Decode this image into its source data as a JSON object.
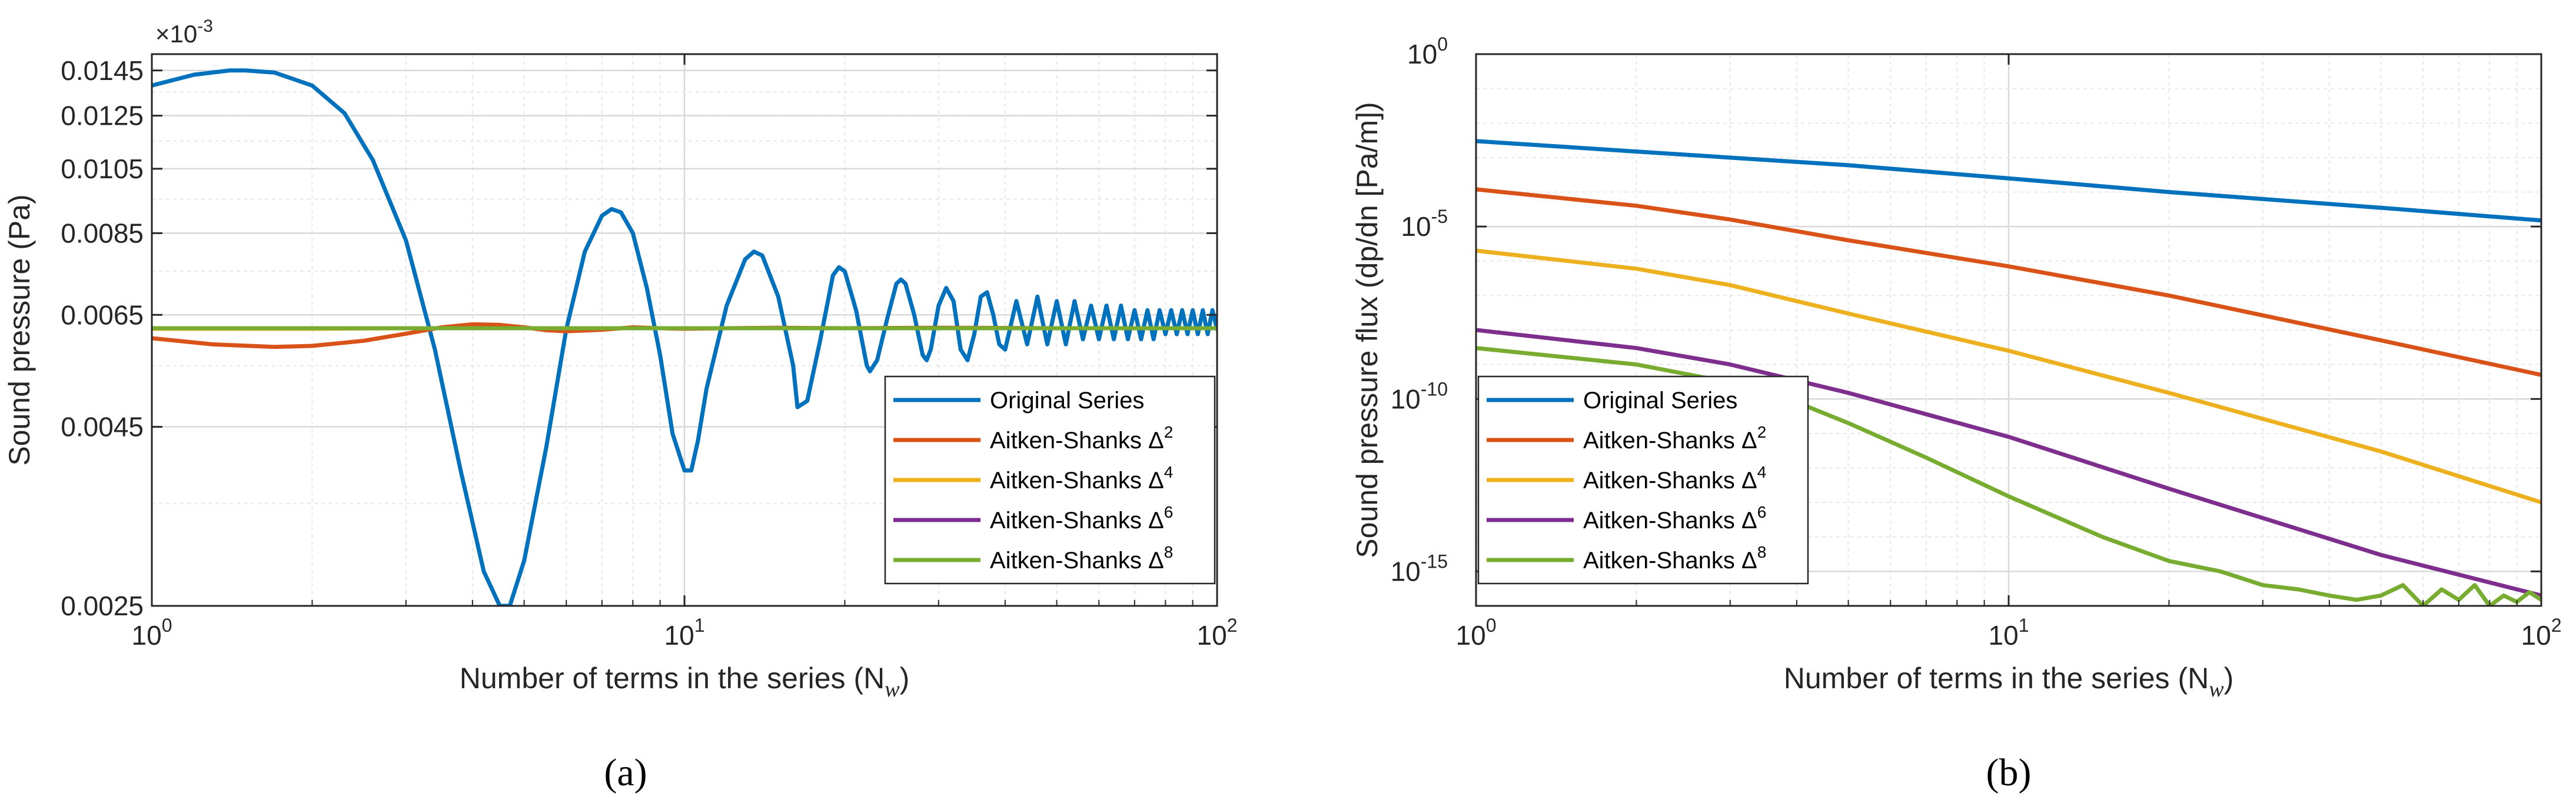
{
  "chart_data": [
    {
      "type": "line",
      "panel_label": "(a)",
      "xlabel": "Number of terms in the series (N",
      "xlabel_sub": "w",
      "xlabel_close": ")",
      "ylabel": "Sound pressure (Pa)",
      "xscale": "log",
      "yscale": "log",
      "xlim": [
        1,
        100
      ],
      "ylim": [
        0.0025,
        0.0153
      ],
      "x_ticks": [
        {
          "value": 1,
          "base": "10",
          "exp": "0"
        },
        {
          "value": 10,
          "base": "10",
          "exp": "1"
        },
        {
          "value": 100,
          "base": "10",
          "exp": "2"
        }
      ],
      "y_ticks": [
        {
          "value": 0.0025,
          "label": "0.0025"
        },
        {
          "value": 0.0045,
          "label": "0.0045"
        },
        {
          "value": 0.0065,
          "label": "0.0065"
        },
        {
          "value": 0.0085,
          "label": "0.0085"
        },
        {
          "value": 0.0105,
          "label": "0.0105"
        },
        {
          "value": 0.0125,
          "label": "0.0125"
        },
        {
          "value": 0.0145,
          "label": "0.0145"
        }
      ],
      "multiplier": {
        "base": "×10",
        "exp": "-3"
      },
      "grid": true,
      "legend_position": "lower-right",
      "series": [
        {
          "name": "Original Series",
          "color": "#0072BD",
          "x": [
            1,
            1.2,
            1.4,
            1.5,
            1.7,
            2,
            2.3,
            2.6,
            3,
            3.4,
            3.8,
            4.2,
            4.5,
            4.7,
            5,
            5.5,
            6,
            6.5,
            7,
            7.3,
            7.6,
            8,
            8.5,
            9,
            9.5,
            10,
            10.3,
            10.6,
            11,
            12,
            13,
            13.5,
            14,
            15,
            16,
            16.3,
            17,
            18,
            19,
            19.5,
            20,
            21,
            22,
            22.3,
            23,
            24,
            25,
            25.5,
            26,
            27,
            28,
            28.5,
            29,
            30,
            31,
            32,
            33,
            34,
            35,
            36,
            37,
            38,
            39,
            40,
            42,
            44,
            46,
            48,
            50,
            52,
            54,
            56,
            58,
            60,
            62,
            64,
            66,
            68,
            70,
            72,
            74,
            76,
            78,
            80,
            82,
            84,
            86,
            88,
            90,
            92,
            94,
            96,
            98,
            100
          ],
          "y": [
            0.0138,
            0.0143,
            0.0145,
            0.0145,
            0.0144,
            0.0138,
            0.0126,
            0.0108,
            0.0083,
            0.0058,
            0.0039,
            0.0028,
            0.0025,
            0.0025,
            0.0029,
            0.0042,
            0.0062,
            0.008,
            0.009,
            0.0092,
            0.0091,
            0.0085,
            0.0071,
            0.0057,
            0.0044,
            0.0039,
            0.0039,
            0.0043,
            0.0051,
            0.0067,
            0.0078,
            0.008,
            0.0079,
            0.0069,
            0.0055,
            0.0048,
            0.0049,
            0.006,
            0.0074,
            0.0076,
            0.0075,
            0.0066,
            0.0055,
            0.0054,
            0.0056,
            0.0064,
            0.0072,
            0.0073,
            0.0072,
            0.0065,
            0.0057,
            0.0056,
            0.0058,
            0.0067,
            0.0071,
            0.0068,
            0.0058,
            0.0056,
            0.0061,
            0.0069,
            0.007,
            0.0065,
            0.0059,
            0.0058,
            0.0068,
            0.0059,
            0.0069,
            0.0059,
            0.0068,
            0.0059,
            0.0068,
            0.006,
            0.0067,
            0.006,
            0.0067,
            0.006,
            0.0067,
            0.006,
            0.0066,
            0.006,
            0.0066,
            0.006,
            0.0066,
            0.0061,
            0.0066,
            0.0061,
            0.0066,
            0.0061,
            0.0066,
            0.0061,
            0.0066,
            0.0061,
            0.0066,
            0.0062
          ]
        },
        {
          "name": "Aitken-Shanks Δ",
          "sup": "2",
          "color": "#D95319",
          "x": [
            1,
            1.3,
            1.7,
            2,
            2.5,
            3,
            3.5,
            4,
            4.5,
            5,
            5.5,
            6,
            7,
            8,
            9,
            10,
            12,
            15,
            20,
            30,
            50,
            100
          ],
          "y": [
            0.00602,
            0.0059,
            0.00585,
            0.00587,
            0.00597,
            0.00611,
            0.00624,
            0.0063,
            0.00629,
            0.00624,
            0.00618,
            0.00616,
            0.00619,
            0.00624,
            0.00622,
            0.00621,
            0.00622,
            0.00623,
            0.00622,
            0.00623,
            0.00622,
            0.00622
          ]
        },
        {
          "name": "Aitken-Shanks Δ",
          "sup": "4",
          "color": "#EDB120",
          "x": [
            1,
            2,
            3,
            5,
            10,
            20,
            50,
            100
          ],
          "y": [
            0.00621,
            0.00621,
            0.00622,
            0.00622,
            0.00622,
            0.00622,
            0.00622,
            0.00622
          ]
        },
        {
          "name": "Aitken-Shanks Δ",
          "sup": "6",
          "color": "#7E2F8E",
          "x": [
            1,
            2,
            3,
            5,
            10,
            20,
            50,
            100
          ],
          "y": [
            0.00622,
            0.00622,
            0.00622,
            0.00622,
            0.00622,
            0.00622,
            0.00622,
            0.00622
          ]
        },
        {
          "name": "Aitken-Shanks Δ",
          "sup": "8",
          "color": "#77AC30",
          "x": [
            1,
            2,
            3,
            5,
            10,
            20,
            50,
            100
          ],
          "y": [
            0.00622,
            0.00622,
            0.00622,
            0.00622,
            0.00622,
            0.00622,
            0.00622,
            0.00622
          ]
        }
      ]
    },
    {
      "type": "line",
      "panel_label": "(b)",
      "xlabel": "Number of terms in the series (N",
      "xlabel_sub": "w",
      "xlabel_close": ")",
      "ylabel": "Sound pressure flux (dp/dn [Pa/m])",
      "xscale": "log",
      "yscale": "log",
      "xlim": [
        1,
        100
      ],
      "ylim": [
        1e-16,
        1
      ],
      "x_ticks": [
        {
          "value": 1,
          "base": "10",
          "exp": "0"
        },
        {
          "value": 10,
          "base": "10",
          "exp": "1"
        },
        {
          "value": 100,
          "base": "10",
          "exp": "2"
        }
      ],
      "y_ticks": [
        {
          "value": 1e-15,
          "base": "10",
          "exp": "-15"
        },
        {
          "value": 1e-10,
          "base": "10",
          "exp": "-10"
        },
        {
          "value": 1e-05,
          "base": "10",
          "exp": "-5"
        },
        {
          "value": 1,
          "base": "10",
          "exp": "0"
        }
      ],
      "grid": true,
      "legend_position": "lower-left",
      "series": [
        {
          "name": "Original Series",
          "color": "#0072BD",
          "x": [
            1,
            2,
            5,
            10,
            20,
            50,
            100
          ],
          "y": [
            0.003,
            0.0015,
            0.0006,
            0.00025,
            0.0001,
            3.5e-05,
            1.5e-05
          ]
        },
        {
          "name": "Aitken-Shanks Δ",
          "sup": "2",
          "color": "#D95319",
          "x": [
            1,
            2,
            3,
            5,
            10,
            20,
            50,
            100
          ],
          "y": [
            0.00012,
            4e-05,
            1.6e-05,
            4e-06,
            7e-07,
            1e-07,
            5e-09,
            5e-10
          ]
        },
        {
          "name": "Aitken-Shanks Δ",
          "sup": "4",
          "color": "#EDB120",
          "x": [
            1,
            2,
            3,
            5,
            10,
            20,
            50,
            100
          ],
          "y": [
            2e-06,
            6e-07,
            2e-07,
            3e-08,
            2.5e-09,
            1.5e-10,
            3e-12,
            1e-13
          ]
        },
        {
          "name": "Aitken-Shanks Δ",
          "sup": "6",
          "color": "#7E2F8E",
          "x": [
            1,
            2,
            3,
            5,
            10,
            20,
            50,
            100
          ],
          "y": [
            1e-08,
            3e-09,
            1e-09,
            1.5e-10,
            8e-12,
            2.5e-13,
            3e-15,
            2e-16
          ]
        },
        {
          "name": "Aitken-Shanks Δ",
          "sup": "8",
          "color": "#77AC30",
          "x": [
            1,
            2,
            3,
            4,
            5,
            7,
            10,
            15,
            20,
            25,
            30,
            35,
            40,
            45,
            50,
            55,
            60,
            65,
            70,
            75,
            80,
            85,
            90,
            95,
            100
          ],
          "y": [
            3e-09,
            1e-09,
            3e-10,
            8e-11,
            2e-11,
            2e-12,
            1.5e-13,
            1e-14,
            2e-15,
            1e-15,
            4e-16,
            3e-16,
            2e-16,
            1.5e-16,
            2e-16,
            4e-16,
            1e-16,
            3e-16,
            1.5e-16,
            4e-16,
            1e-16,
            2e-16,
            1.3e-16,
            2.5e-16,
            1.5e-16
          ]
        }
      ]
    }
  ]
}
